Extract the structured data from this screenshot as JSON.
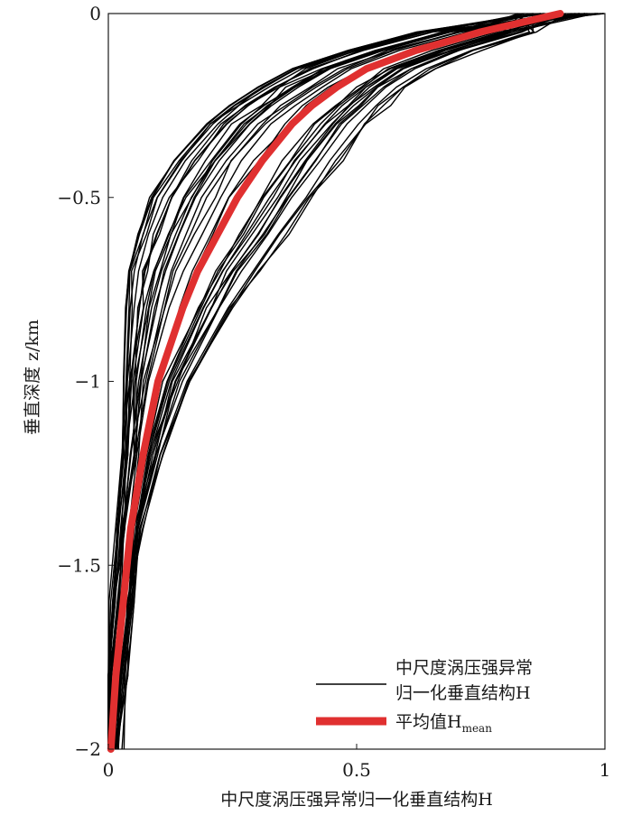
{
  "chart_data": {
    "type": "line",
    "xlabel": "中尺度涡压强异常归一化垂直结构H",
    "ylabel": "垂直深度 z/km",
    "xlim": [
      0,
      1
    ],
    "ylim": [
      -2,
      0
    ],
    "x_ticks": [
      "0",
      "0.5",
      "1"
    ],
    "y_ticks": [
      "0",
      "−0.5",
      "−1",
      "−1.5",
      "−2"
    ],
    "grid": false,
    "legend_position": "bottom-right",
    "legend": {
      "profiles_line1": "中尺度涡压强异常",
      "profiles_line2": "归一化垂直结构H",
      "mean_main": "平均值H",
      "mean_sub": "mean"
    },
    "series": [
      {
        "name": "中尺度涡压强异常归一化垂直结构H",
        "color": "#000000",
        "note_count": 40,
        "depth_range_km": [
          -2,
          0
        ],
        "x_at_-2.0": [
          0.0,
          0.02
        ],
        "x_at_-1.0": [
          0.01,
          0.12
        ],
        "x_at_-0.5": [
          0.13,
          0.42
        ],
        "x_at_0.0": [
          0.82,
          1.0
        ]
      },
      {
        "name": "平均值H",
        "color": "#e03030",
        "z": [
          0,
          -0.05,
          -0.1,
          -0.15,
          -0.2,
          -0.25,
          -0.3,
          -0.4,
          -0.5,
          -0.6,
          -0.7,
          -0.8,
          -1.0,
          -1.2,
          -1.4,
          -1.6,
          -1.8,
          -2.0
        ],
        "x": [
          0.91,
          0.75,
          0.62,
          0.52,
          0.46,
          0.41,
          0.37,
          0.31,
          0.26,
          0.22,
          0.18,
          0.15,
          0.1,
          0.07,
          0.045,
          0.03,
          0.015,
          0.005
        ]
      }
    ]
  }
}
